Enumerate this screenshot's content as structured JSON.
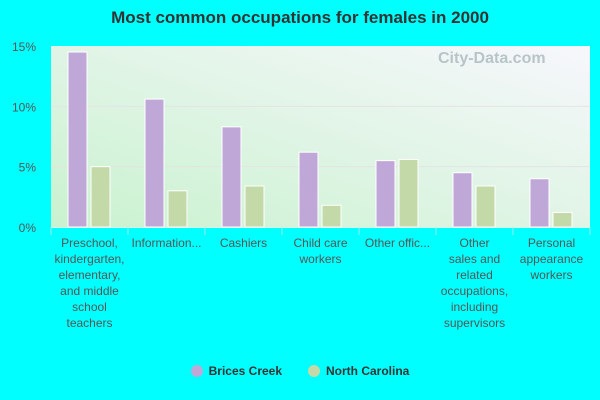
{
  "chart_data": {
    "type": "bar",
    "title": "Most common occupations for females in 2000",
    "categories": [
      "Preschool, kindergarten, elementary, and middle school teachers",
      "Information...",
      "Cashiers",
      "Child care workers",
      "Other offic...",
      "Other sales and related occupations, including supervisors",
      "Personal appearance workers"
    ],
    "category_lines": [
      [
        "Preschool,",
        "kindergarten,",
        "elementary,",
        "and middle",
        "school",
        "teachers"
      ],
      [
        "Information..."
      ],
      [
        "Cashiers"
      ],
      [
        "Child care",
        "workers"
      ],
      [
        "Other offic..."
      ],
      [
        "Other",
        "sales and",
        "related",
        "occupations,",
        "including",
        "supervisors"
      ],
      [
        "Personal",
        "appearance",
        "workers"
      ]
    ],
    "series": [
      {
        "name": "Brices Creek",
        "color": "#bfa8d8",
        "values": [
          14.5,
          10.6,
          8.3,
          6.2,
          5.5,
          4.5,
          4.0
        ]
      },
      {
        "name": "North Carolina",
        "color": "#c4d9a8",
        "values": [
          5.0,
          3.0,
          3.4,
          1.8,
          5.6,
          3.4,
          1.2
        ]
      }
    ],
    "yticks": [
      "0%",
      "5%",
      "10%",
      "15%"
    ],
    "ytick_values": [
      0,
      5,
      10,
      15
    ],
    "ylim": [
      0,
      15
    ],
    "grid": true,
    "legend": "bottom",
    "watermark": "City-Data.com"
  }
}
